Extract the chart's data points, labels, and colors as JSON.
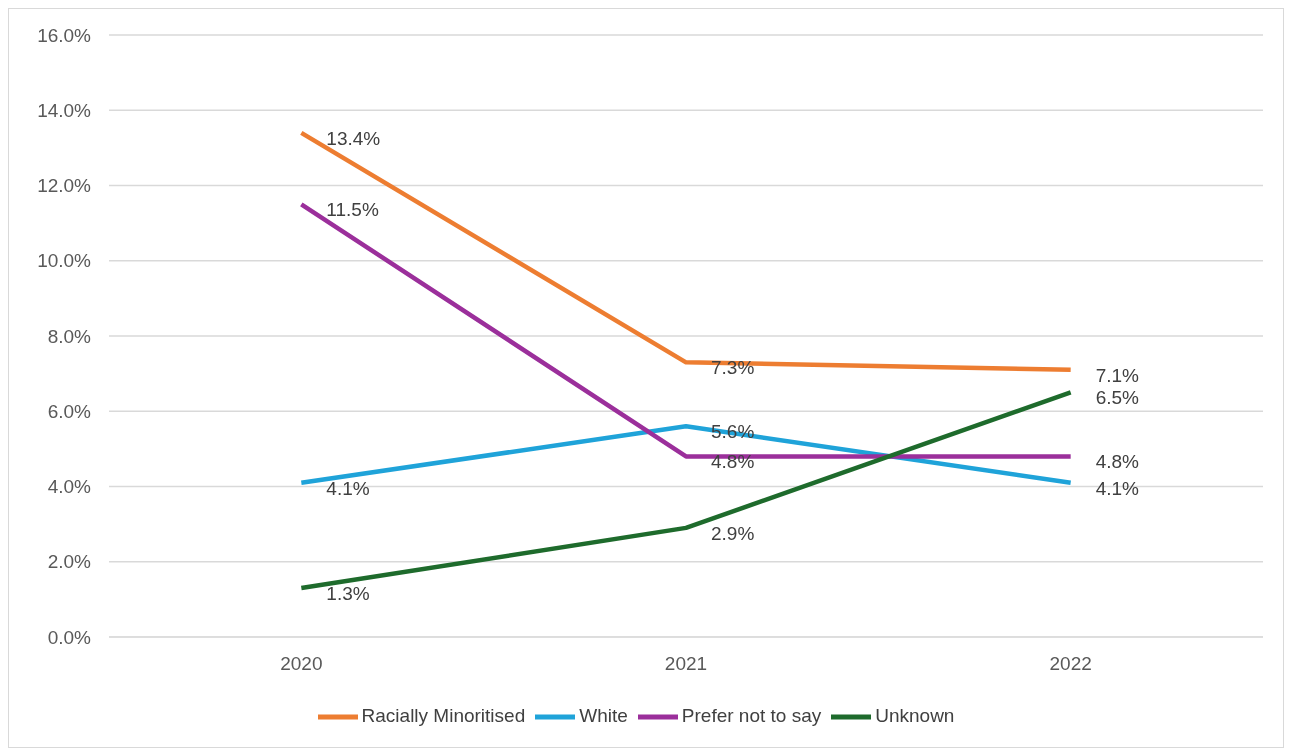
{
  "chart_data": {
    "type": "line",
    "categories": [
      "2020",
      "2021",
      "2022"
    ],
    "series": [
      {
        "name": "Racially Minoritised",
        "color": "#ed7d31",
        "values": [
          13.4,
          7.3,
          7.1
        ],
        "value_labels": [
          "13.4%",
          "7.3%",
          "7.1%"
        ]
      },
      {
        "name": "White",
        "color": "#1fa3d9",
        "values": [
          4.1,
          5.6,
          4.1
        ],
        "value_labels": [
          "4.1%",
          "5.6%",
          "4.1%"
        ]
      },
      {
        "name": "Prefer not to say",
        "color": "#9b2f9b",
        "values": [
          11.5,
          4.8,
          4.8
        ],
        "value_labels": [
          "11.5%",
          "4.8%",
          "4.8%"
        ]
      },
      {
        "name": "Unknown",
        "color": "#1e6b2c",
        "values": [
          1.3,
          2.9,
          6.5
        ],
        "value_labels": [
          "1.3%",
          "2.9%",
          "6.5%"
        ]
      }
    ],
    "ylim": [
      0,
      16
    ],
    "yticks": [
      {
        "value": 0,
        "label": "0.0%"
      },
      {
        "value": 2,
        "label": "2.0%"
      },
      {
        "value": 4,
        "label": "4.0%"
      },
      {
        "value": 6,
        "label": "6.0%"
      },
      {
        "value": 8,
        "label": "8.0%"
      },
      {
        "value": 10,
        "label": "10.0%"
      },
      {
        "value": 12,
        "label": "12.0%"
      },
      {
        "value": 14,
        "label": "14.0%"
      },
      {
        "value": 16,
        "label": "16.0%"
      }
    ],
    "grid": "y",
    "legend": "bottom",
    "marker": "none",
    "line_style": "solid"
  }
}
